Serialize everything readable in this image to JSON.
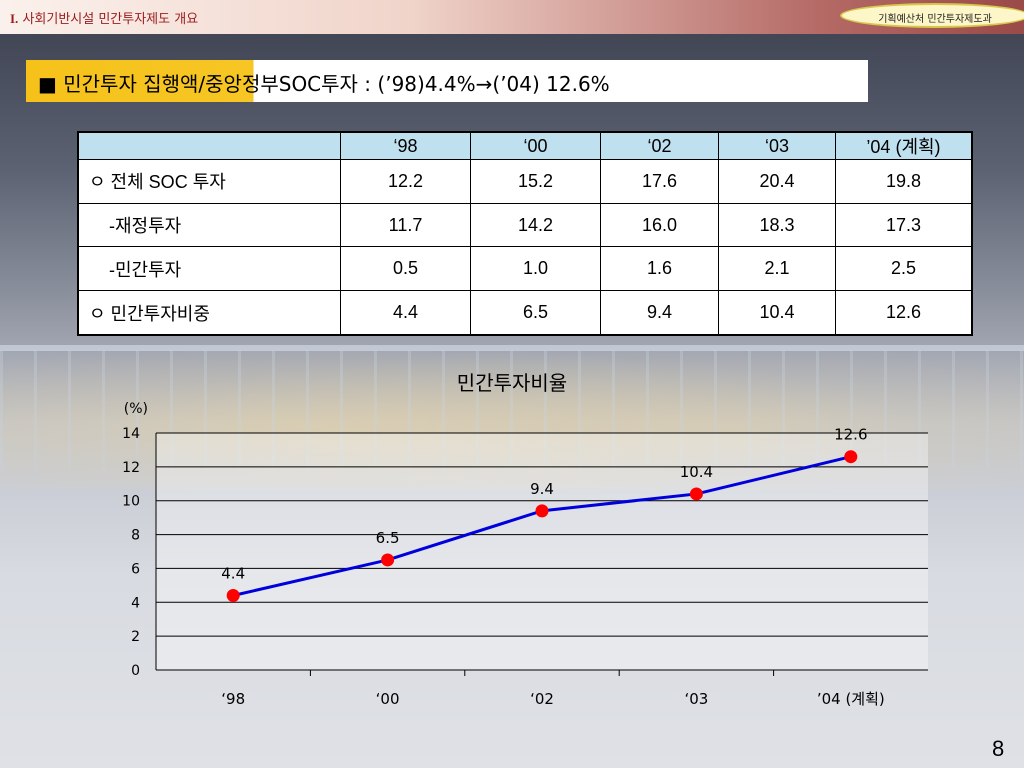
{
  "header": {
    "section_num": "I.",
    "section_title": "사회기반시설 민간투자제도 개요",
    "badge": "기획예산처 민간투자제도과"
  },
  "headline": "■  민간투자 집행액/중앙정부SOC투자 : (’98)4.4%→(’04) 12.6%",
  "table": {
    "columns": [
      "",
      "‘98",
      "‘00",
      "‘02",
      "‘03",
      "’04 (계획)"
    ],
    "rows": [
      {
        "label": "ㅇ 전체 SOC 투자",
        "values": [
          "12.2",
          "15.2",
          "17.6",
          "20.4",
          "19.8"
        ]
      },
      {
        "label": "-재정투자",
        "values": [
          "11.7",
          "14.2",
          "16.0",
          "18.3",
          "17.3"
        ]
      },
      {
        "label": "-민간투자",
        "values": [
          "0.5",
          "1.0",
          "1.6",
          "2.1",
          "2.5"
        ]
      },
      {
        "label": "ㅇ 민간투자비중",
        "values": [
          "4.4",
          "6.5",
          "9.4",
          "10.4",
          "12.6"
        ]
      }
    ]
  },
  "chart_data": {
    "type": "line",
    "title": "민간투자비율",
    "ylabel": "(%)",
    "xlabel": "",
    "categories": [
      "‘98",
      "‘00",
      "‘02",
      "‘03",
      "’04 (계획)"
    ],
    "values": [
      4.4,
      6.5,
      9.4,
      10.4,
      12.6
    ],
    "data_labels": [
      "4.4",
      "6.5",
      "9.4",
      "10.4",
      "12.6"
    ],
    "ylim": [
      0,
      14
    ],
    "yticks": [
      "0",
      "2",
      "4",
      "6",
      "8",
      "10",
      "12",
      "14"
    ],
    "grid": true,
    "line_color": "#0000dd",
    "marker_color": "#ff0000"
  },
  "page_number": "8"
}
